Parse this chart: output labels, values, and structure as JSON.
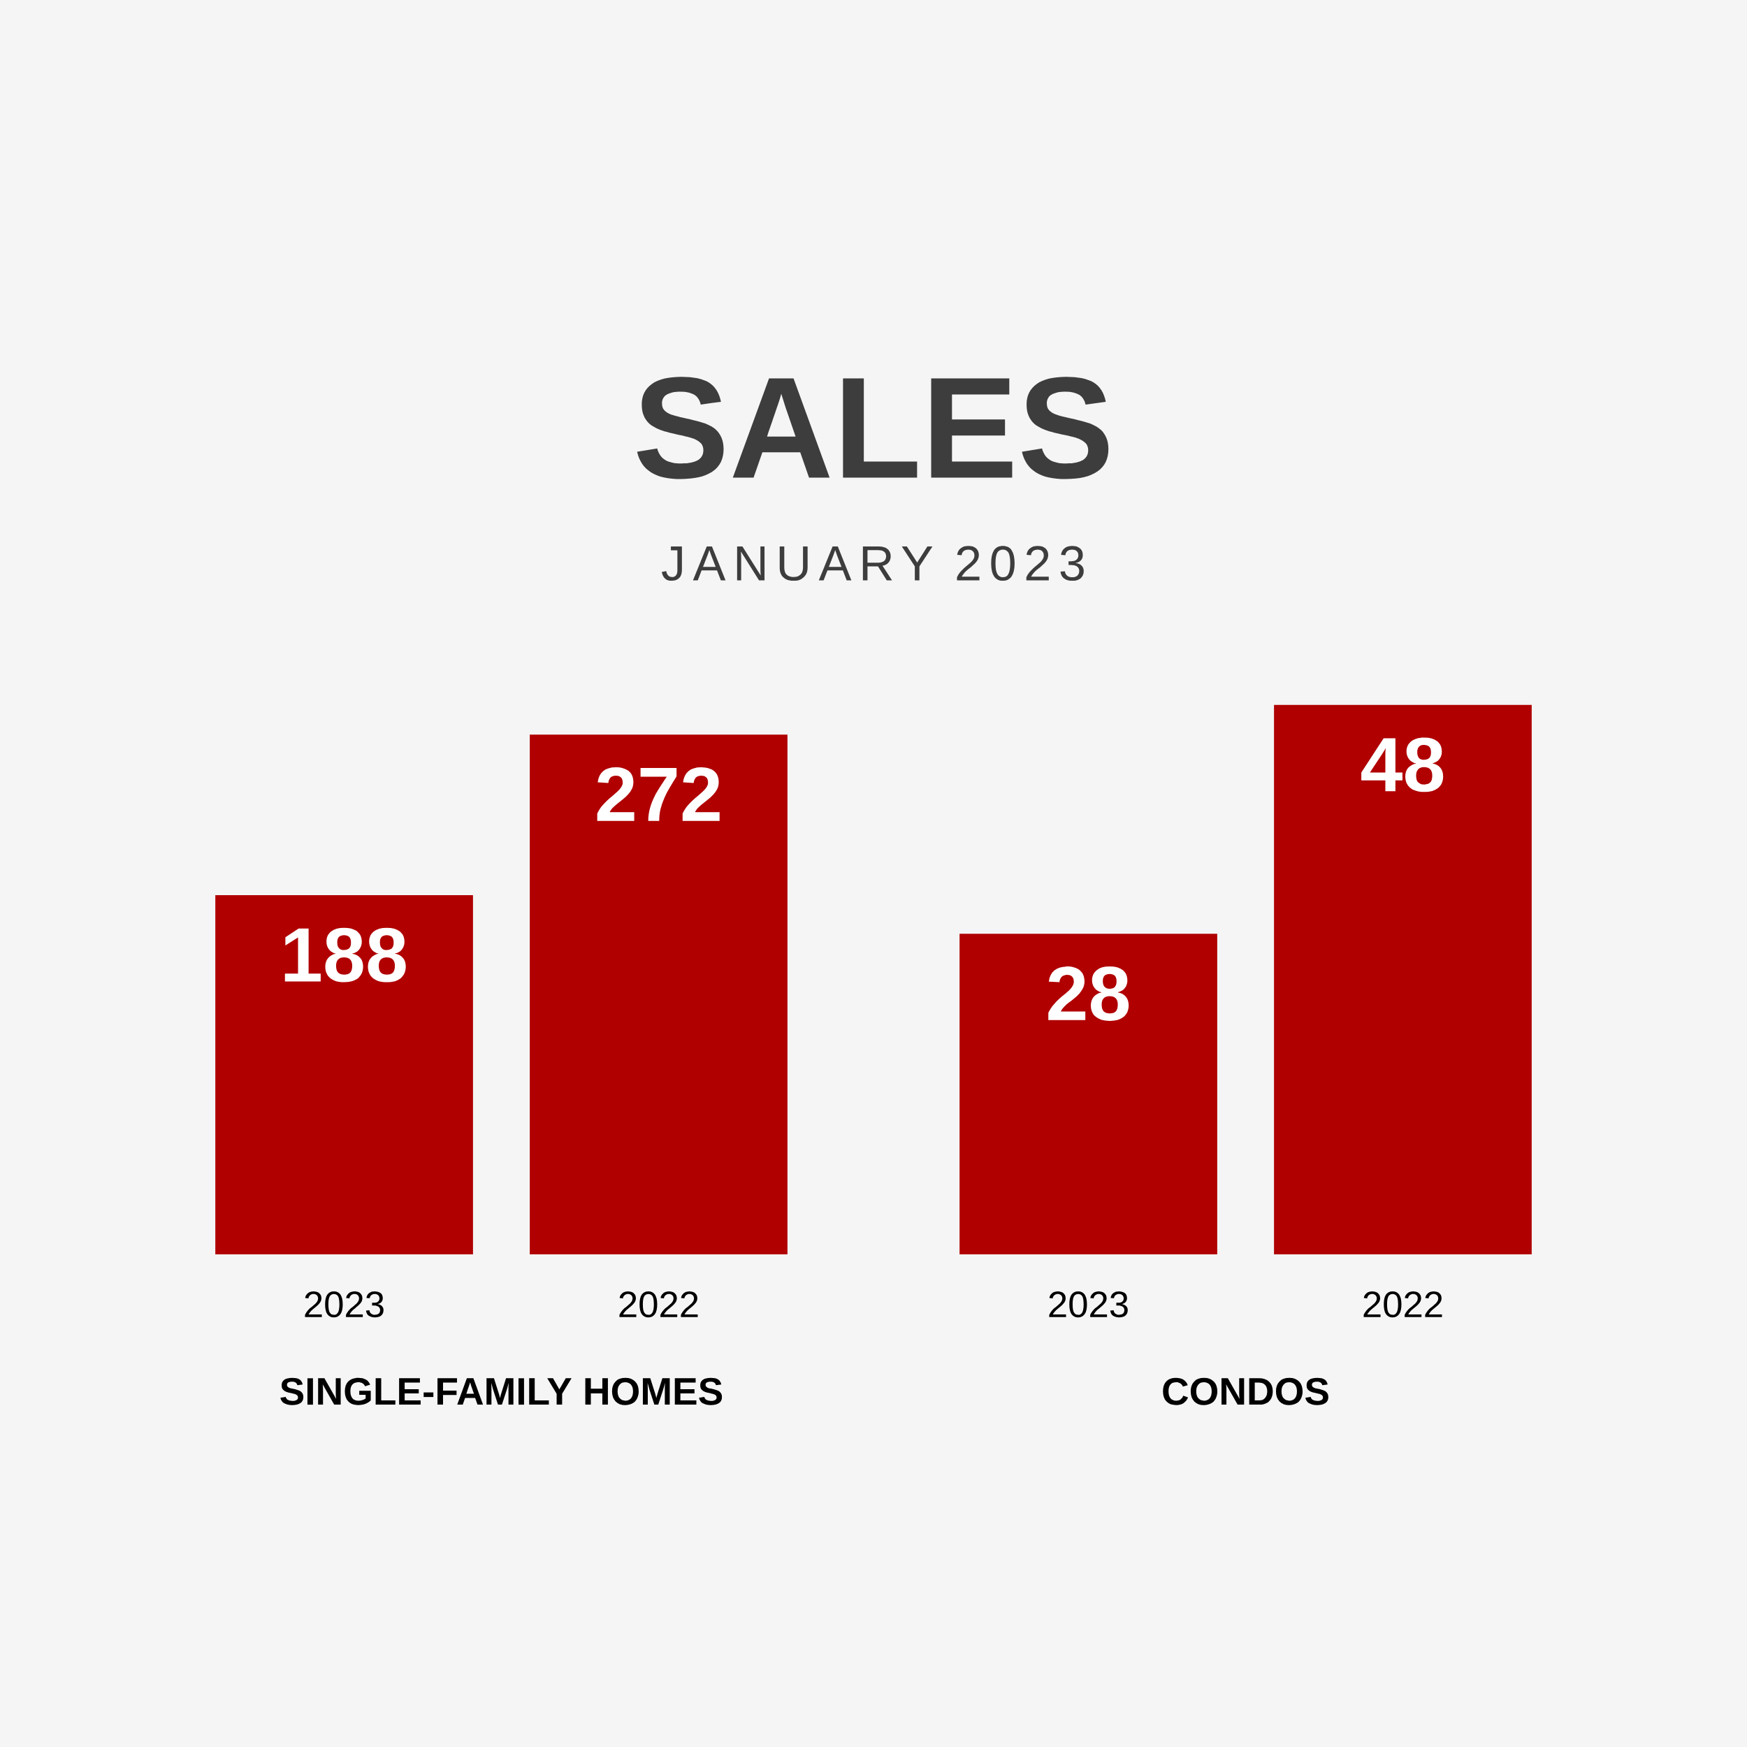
{
  "chart_data": [
    {
      "type": "bar",
      "title": "SALES",
      "subtitle": "JANUARY 2023",
      "xlabel": "SINGLE-FAMILY HOMES",
      "categories": [
        "2023",
        "2022"
      ],
      "values": [
        188,
        272
      ],
      "color": "#b00000",
      "data_labels": true,
      "tick_labels": "x"
    },
    {
      "type": "bar",
      "xlabel": "CONDOS",
      "categories": [
        "2023",
        "2022"
      ],
      "values": [
        28,
        48
      ],
      "color": "#b00000",
      "data_labels": true,
      "tick_labels": "x"
    }
  ]
}
